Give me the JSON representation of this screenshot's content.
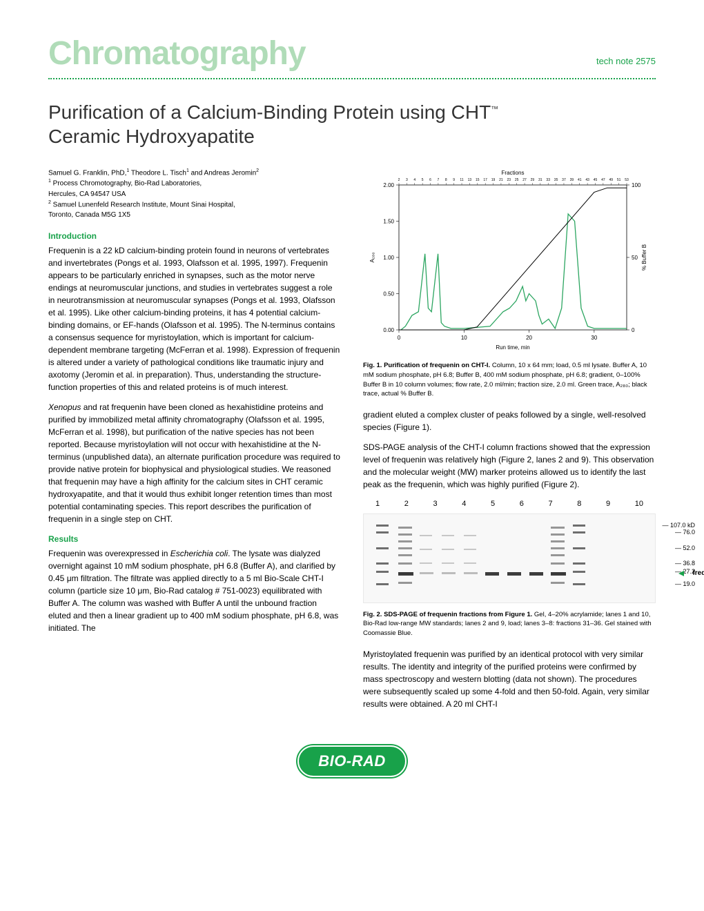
{
  "header": {
    "title": "Chromatography",
    "tech_note": "tech note 2575"
  },
  "title": {
    "main": "Purification of a Calcium-Binding Protein using CHT",
    "tm": "™",
    "sub": "Ceramic Hydroxyapatite"
  },
  "authors": {
    "line1_a": "Samuel G. Franklin, PhD,",
    "line1_b": " Theodore L. Tisch",
    "line1_c": " and Andreas Jeromin",
    "aff1_sup": "1",
    "aff1": " Process Chromotography, Bio-Rad Laboratories,",
    "aff1b": "Hercules, CA 94547 USA",
    "aff2_sup": "2",
    "aff2": " Samuel Lunenfeld Research Institute, Mount Sinai Hospital,",
    "aff2b": "Toronto, Canada M5G 1X5"
  },
  "sections": {
    "intro_head": "Introduction",
    "intro_p1": "Frequenin is a 22 kD calcium-binding protein found in neurons of vertebrates and invertebrates (Pongs et al. 1993, Olafsson et al. 1995, 1997). Frequenin appears to be particularly enriched in synapses, such as the motor nerve endings at neuromuscular junctions, and studies in vertebrates suggest a role in neurotransmission at neuromuscular synapses (Pongs et al. 1993, Olafsson et al. 1995). Like other calcium-binding proteins, it has 4 potential calcium-binding domains, or EF-hands (Olafsson et al. 1995). The N-terminus contains a consensus sequence for myristoylation, which is important for calcium-dependent membrane targeting (McFerran et al. 1998). Expression of frequenin is altered under a variety of pathological conditions like traumatic injury and axotomy (Jeromin et al. in preparation). Thus, understanding the structure-function properties of this and related proteins is of much interest.",
    "intro_p2a": "Xenopus",
    "intro_p2b": " and rat frequenin have been cloned as hexahistidine proteins and purified by immobilized metal affinity chromatography (Olafsson et al. 1995, McFerran et al. 1998), but purification of the native species has not been reported. Because myristoylation will not occur with hexahistidine at the N-terminus (unpublished data), an alternate purification procedure was required to provide native protein for biophysical and physiological studies. We reasoned that frequenin may have a high affinity for the calcium sites in CHT ceramic hydroxyapatite, and that it would thus exhibit longer retention times than most potential contaminating species. This report describes the purification of frequenin in a single step on CHT.",
    "results_head": "Results",
    "results_p1a": "Frequenin was overexpressed in ",
    "results_p1b": "Escherichia coli",
    "results_p1c": ". The lysate was dialyzed overnight against 10 mM sodium phosphate, pH 6.8 (Buffer A), and clarified by 0.45 μm filtration. The filtrate was applied directly to a 5 ml Bio-Scale CHT-I column (particle size 10 μm, Bio-Rad catalog # 751-0023) equilibrated with Buffer A. The column was washed with Buffer A until the unbound fraction eluted and then a linear gradient up to 400 mM sodium phosphate, pH 6.8, was initiated. The",
    "col2_p1": "gradient eluted a complex cluster of peaks followed by a single, well-resolved species (Figure 1).",
    "col2_p2": "SDS-PAGE analysis of the CHT-I column fractions showed that the expression level of frequenin was relatively high (Figure 2, lanes 2 and 9). This observation and the molecular weight (MW) marker proteins allowed us to identify the last peak as the frequenin, which was highly purified (Figure 2).",
    "col2_p3": "Myristoylated frequenin was purified by an identical protocol with very similar results. The identity and integrity of the purified proteins were confirmed by mass spectroscopy and western blotting (data not shown). The procedures were subsequently scaled up some 4-fold and then 50-fold. Again, very similar results were obtained. A 20 ml CHT-I"
  },
  "fig1": {
    "caption_a": "Fig. 1. Purification of frequenin on CHT-I.",
    "caption_b": " Column, 10 x 64 mm; load, 0.5 ml lysate. Buffer A, 10 mM sodium phosphate, pH 6.8; Buffer B, 400 mM sodium phosphate, pH 6.8; gradient, 0–100% Buffer B in 10 column volumes; flow rate, 2.0 ml/min; fraction size, 2.0 ml. Green trace, A₂₈₀; black trace, actual % Buffer B.",
    "chart": {
      "type": "line",
      "xlabel": "Run time, min",
      "ylabel_left": "A₂₈₀",
      "ylabel_right": "% Buffer B",
      "toplabel": "Fractions",
      "xlim": [
        0,
        35
      ],
      "ylim_left": [
        0,
        2.0
      ],
      "ylim_right": [
        0,
        100
      ],
      "xtick_step": 10,
      "ytick_step": 0.5,
      "ytick_right_step": 50,
      "fractions": [
        2,
        3,
        4,
        5,
        6,
        7,
        8,
        9,
        11,
        13,
        15,
        17,
        19,
        21,
        23,
        25,
        27,
        29,
        31,
        33,
        35,
        37,
        39,
        41,
        43,
        45,
        47,
        49,
        51,
        53
      ],
      "green_trace_color": "#2ba560",
      "black_trace_color": "#000000",
      "background_color": "#ffffff",
      "border_color": "#000000",
      "green_points": [
        [
          0.3,
          0
        ],
        [
          1,
          0.05
        ],
        [
          2,
          0.2
        ],
        [
          3,
          0.25
        ],
        [
          4,
          1.05
        ],
        [
          4.5,
          0.3
        ],
        [
          5,
          0.25
        ],
        [
          6,
          1.05
        ],
        [
          6.5,
          0.1
        ],
        [
          7,
          0.05
        ],
        [
          8,
          0.02
        ],
        [
          10,
          0.02
        ],
        [
          14,
          0.05
        ],
        [
          16,
          0.25
        ],
        [
          17,
          0.3
        ],
        [
          18,
          0.4
        ],
        [
          19,
          0.6
        ],
        [
          19.5,
          0.4
        ],
        [
          20,
          0.5
        ],
        [
          21,
          0.4
        ],
        [
          21.5,
          0.2
        ],
        [
          22,
          0.08
        ],
        [
          23,
          0.15
        ],
        [
          24,
          0.02
        ],
        [
          25,
          0.3
        ],
        [
          26,
          1.6
        ],
        [
          27,
          1.5
        ],
        [
          28,
          0.3
        ],
        [
          29,
          0.05
        ],
        [
          30,
          0.02
        ],
        [
          35,
          0.02
        ]
      ],
      "black_points": [
        [
          0,
          0
        ],
        [
          10,
          0
        ],
        [
          12,
          2
        ],
        [
          30,
          95
        ],
        [
          32,
          98
        ],
        [
          35,
          98
        ]
      ]
    }
  },
  "fig2": {
    "caption_a": "Fig. 2. SDS-PAGE of frequenin fractions from Figure 1.",
    "caption_b": " Gel, 4–20% acrylamide; lanes 1 and 10, Bio-Rad low-range MW standards; lanes 2 and 9, load; lanes 3–8: fractions 31–36. Gel stained with Coomassie Blue.",
    "lanes": [
      "1",
      "2",
      "3",
      "4",
      "5",
      "6",
      "7",
      "8",
      "9",
      "10"
    ],
    "mw_markers": [
      {
        "label": "107.0 kD",
        "y": 15
      },
      {
        "label": "76.0",
        "y": 25
      },
      {
        "label": "52.0",
        "y": 48
      },
      {
        "label": "36.8",
        "y": 70
      },
      {
        "label": "27.2",
        "y": 82
      },
      {
        "label": "19.0",
        "y": 100
      }
    ],
    "frequenin_label": "frequenin",
    "frequenin_y": 84
  },
  "logo": {
    "text": "BIO-RAD"
  }
}
